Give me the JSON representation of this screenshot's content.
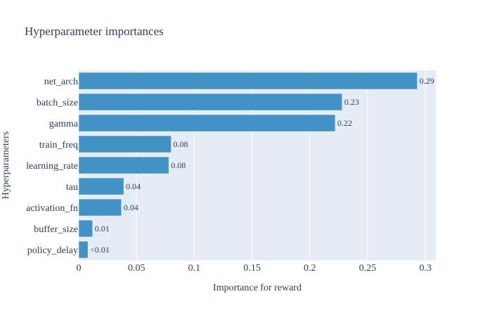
{
  "chart_data": {
    "type": "bar",
    "orientation": "horizontal",
    "title": "Hyperparameter importances",
    "xlabel": "Importance for reward",
    "ylabel": "Hyperparameters",
    "categories": [
      "net_arch",
      "batch_size",
      "gamma",
      "train_freq",
      "learning_rate",
      "tau",
      "activation_fn",
      "buffer_size",
      "policy_delay"
    ],
    "values": [
      0.293,
      0.228,
      0.222,
      0.08,
      0.078,
      0.039,
      0.037,
      0.012,
      0.008
    ],
    "data_labels": [
      "0.29",
      "0.23",
      "0.22",
      "0.08",
      "0.08",
      "0.04",
      "0.04",
      "0.01",
      "<0.01"
    ],
    "xlim": [
      0,
      0.309
    ],
    "xticks": [
      0,
      0.05,
      0.1,
      0.15,
      0.2,
      0.25,
      0.3
    ],
    "xtick_labels": [
      "0",
      "0.05",
      "0.1",
      "0.15",
      "0.2",
      "0.25",
      "0.3"
    ],
    "grid": true,
    "legend": "none",
    "colors": {
      "bar": "#4292c6",
      "plot_bg": "#e5ecf6",
      "grid": "#ffffff",
      "text": "#2a3f5f"
    }
  }
}
